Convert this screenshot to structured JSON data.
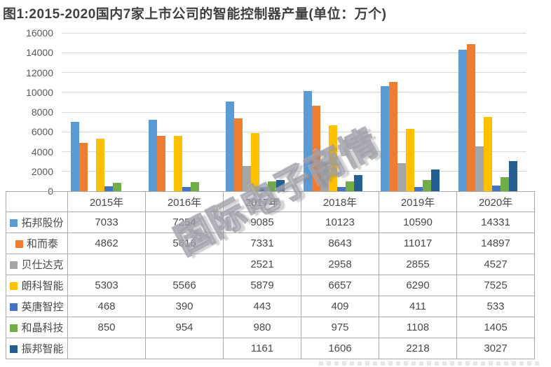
{
  "title": "图1:2015-2020国内7家上市公司的智能控制器产量(单位：万个)",
  "watermark": {
    "text": "国际电子商情"
  },
  "chart_data": {
    "type": "bar",
    "title": "图1:2015-2020国内7家上市公司的智能控制器产量(单位：万个)",
    "xlabel": "",
    "ylabel": "",
    "unit": "万个",
    "categories": [
      "2015年",
      "2016年",
      "2017年",
      "2018年",
      "2019年",
      "2020年"
    ],
    "series": [
      {
        "name": "拓邦股份",
        "color": "#5B9BD5",
        "values": [
          7033,
          7254,
          9085,
          10123,
          10590,
          14331
        ]
      },
      {
        "name": "和而泰",
        "color": "#ED7D31",
        "values": [
          4862,
          5616,
          7331,
          8643,
          11017,
          14897
        ]
      },
      {
        "name": "贝仕达克",
        "color": "#A5A5A5",
        "values": [
          null,
          null,
          2521,
          2958,
          2855,
          4527
        ]
      },
      {
        "name": "朗科智能",
        "color": "#FFC000",
        "values": [
          5303,
          5566,
          5879,
          6657,
          6290,
          7525
        ]
      },
      {
        "name": "英唐智控",
        "color": "#4472C4",
        "values": [
          468,
          390,
          443,
          409,
          411,
          533
        ]
      },
      {
        "name": "和晶科技",
        "color": "#70AD47",
        "values": [
          850,
          954,
          980,
          975,
          1108,
          1405
        ]
      },
      {
        "name": "振邦智能",
        "color": "#255E91",
        "values": [
          null,
          null,
          1161,
          1606,
          2218,
          3027
        ]
      }
    ],
    "ylim": [
      0,
      16000
    ],
    "yticks": [
      0,
      2000,
      4000,
      6000,
      8000,
      10000,
      12000,
      14000,
      16000
    ],
    "grid": true,
    "legend_position": "table-left-column",
    "colors": {
      "gridline": "#D9D9D9",
      "table_border": "#ABABAB",
      "axis_text": "#595959",
      "title_text": "#3F3F3F"
    }
  }
}
